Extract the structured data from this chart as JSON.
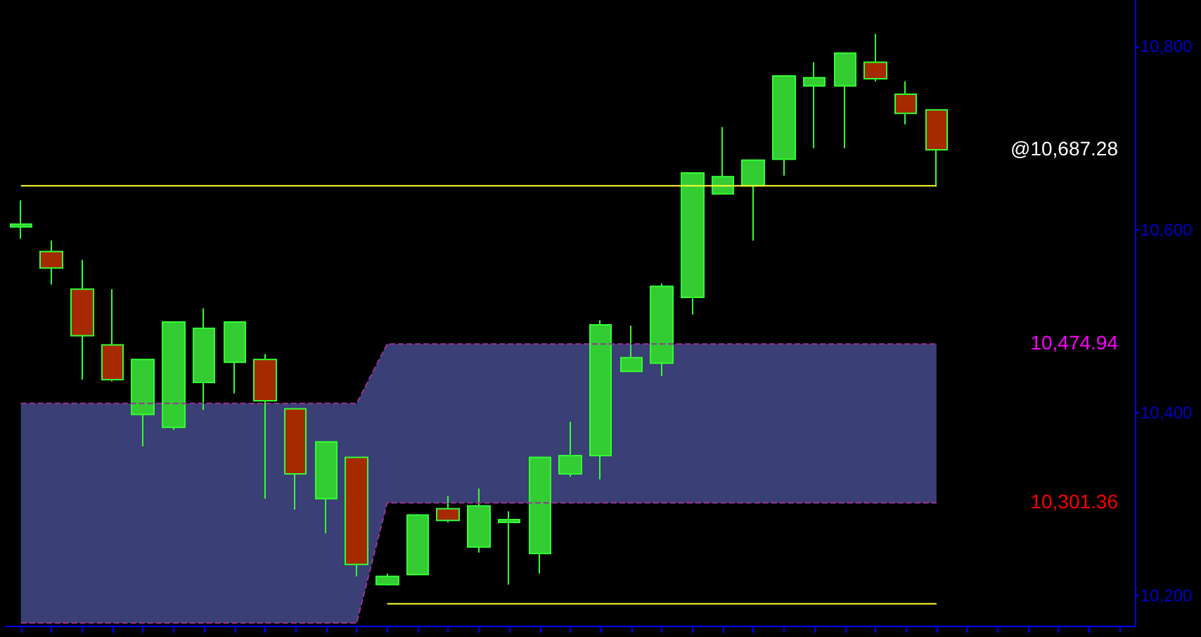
{
  "chart_data": {
    "type": "candlestick",
    "categories": [
      null,
      null,
      null,
      null,
      null,
      null,
      null,
      null,
      null,
      null,
      null,
      null,
      null,
      null,
      null,
      null,
      null,
      null,
      null,
      null,
      null,
      null,
      null,
      null,
      null,
      null,
      null,
      null,
      null,
      null,
      null
    ],
    "ohlc": [
      [
        10603,
        10632,
        10590,
        10606
      ],
      [
        10576,
        10588,
        10540,
        10558
      ],
      [
        10535,
        10567,
        10436,
        10484
      ],
      [
        10474,
        10535,
        10434,
        10436
      ],
      [
        10398,
        10458,
        10363,
        10458
      ],
      [
        10384,
        10499,
        10381,
        10499
      ],
      [
        10433,
        10514,
        10403,
        10492
      ],
      [
        10455,
        10499,
        10421,
        10499
      ],
      [
        10458,
        10464,
        10306,
        10413
      ],
      [
        10404,
        10404,
        10294,
        10333
      ],
      [
        10306,
        10368,
        10268,
        10368
      ],
      [
        10351,
        10351,
        10221,
        10234
      ],
      [
        10212,
        10224,
        10211,
        10221
      ],
      [
        10223,
        10289,
        10223,
        10288
      ],
      [
        10295,
        10309,
        10280,
        10282
      ],
      [
        10253,
        10317,
        10247,
        10298
      ],
      [
        10280,
        10292,
        10212,
        10283
      ],
      [
        10246,
        10351,
        10224,
        10351
      ],
      [
        10333,
        10390,
        10330,
        10353
      ],
      [
        10353,
        10501,
        10327,
        10496
      ],
      [
        10445,
        10495,
        10445,
        10460
      ],
      [
        10454,
        10541,
        10440,
        10538
      ],
      [
        10526,
        10662,
        10507,
        10662
      ],
      [
        10639,
        10712,
        10639,
        10658
      ],
      [
        10648,
        10676,
        10588,
        10676
      ],
      [
        10677,
        10768,
        10659,
        10768
      ],
      [
        10757,
        10783,
        10689,
        10766
      ],
      [
        10757,
        10793,
        10689,
        10793
      ],
      [
        10783,
        10814,
        10762,
        10765
      ],
      [
        10748,
        10762,
        10715,
        10727
      ],
      [
        10731,
        10731,
        10647,
        10687.28
      ]
    ],
    "colors": [
      "#33cc33",
      "#a52a00",
      "#a52a00",
      "#a52a00",
      "#33cc33",
      "#33cc33",
      "#33cc33",
      "#33cc33",
      "#a52a00",
      "#a52a00",
      "#33cc33",
      "#a52a00",
      "#33cc33",
      "#33cc33",
      "#a52a00",
      "#33cc33",
      "#33cc33",
      "#33cc33",
      "#33cc33",
      "#33cc33",
      "#33cc33",
      "#33cc33",
      "#33cc33",
      "#33cc33",
      "#33cc33",
      "#33cc33",
      "#33cc33",
      "#33cc33",
      "#a52a00",
      "#a52a00",
      "#a52a00"
    ],
    "series": [
      {
        "type": "line",
        "color": "#993399",
        "line_style": "dashed",
        "values": [
          10170,
          10170,
          10170,
          10170,
          10170,
          10170,
          10170,
          10170,
          10170,
          10170,
          10170,
          10170,
          10301.36,
          10301.36,
          10301.36,
          10301.36,
          10301.36,
          10301.36,
          10301.36,
          10301.36,
          10301.36,
          10301.36,
          10301.36,
          10301.36,
          10301.36,
          10301.36,
          10301.36,
          10301.36,
          10301.36,
          10301.36,
          10301.36
        ]
      },
      {
        "type": "line",
        "color": "#993399",
        "line_style": "dashed",
        "values": [
          10410,
          10410,
          10410,
          10410,
          10410,
          10410,
          10410,
          10410,
          10410,
          10410,
          10410,
          10410,
          10474.94,
          10474.94,
          10474.94,
          10474.94,
          10474.94,
          10474.94,
          10474.94,
          10474.94,
          10474.94,
          10474.94,
          10474.94,
          10474.94,
          10474.94,
          10474.94,
          10474.94,
          10474.94,
          10474.94,
          10474.94,
          10474.94
        ],
        "lower": [
          10170,
          10170,
          10170,
          10170,
          10170,
          10170,
          10170,
          10170,
          10170,
          10170,
          10170,
          10170,
          10301.36,
          10301.36,
          10301.36,
          10301.36,
          10301.36,
          10301.36,
          10301.36,
          10301.36,
          10301.36,
          10301.36,
          10301.36,
          10301.36,
          10301.36,
          10301.36,
          10301.36,
          10301.36,
          10301.36,
          10301.36,
          10301.36
        ],
        "upper": [
          10410,
          10410,
          10410,
          10410,
          10410,
          10410,
          10410,
          10410,
          10410,
          10410,
          10410,
          10410,
          10474.94,
          10474.94,
          10474.94,
          10474.94,
          10474.94,
          10474.94,
          10474.94,
          10474.94,
          10474.94,
          10474.94,
          10474.94,
          10474.94,
          10474.94,
          10474.94,
          10474.94,
          10474.94,
          10474.94,
          10474.94,
          10474.94
        ]
      },
      {
        "type": "line",
        "color": "#ffff33",
        "values": [
          10648,
          10648,
          10648,
          10648,
          10648,
          10648,
          10648,
          10648,
          10648,
          10648,
          10648,
          10648,
          10648,
          10648,
          10648,
          10648,
          10648,
          10648,
          10648,
          10648,
          10648,
          10648,
          10648,
          10648,
          10648,
          10648,
          10648,
          10648,
          10648,
          10648,
          10648
        ]
      },
      {
        "type": "line",
        "color": "#ffff33",
        "values": [
          null,
          null,
          null,
          null,
          null,
          null,
          null,
          null,
          null,
          null,
          null,
          null,
          10191,
          10191,
          10191,
          10191,
          10191,
          10191,
          10191,
          10191,
          10191,
          10191,
          10191,
          10191,
          10191,
          10191,
          10191,
          10191,
          10191,
          10191,
          10191
        ]
      }
    ],
    "ylim": [
      10167,
      10851
    ],
    "yticks": [
      {
        "value": 10200,
        "label": "10,200"
      },
      {
        "value": 10400,
        "label": "10,400"
      },
      {
        "value": 10600,
        "label": "10,600"
      },
      {
        "value": 10800,
        "label": "10,800"
      }
    ],
    "grid": false,
    "annotations": [
      "@10,687.28",
      "10,474.94",
      "10,301.36"
    ]
  }
}
